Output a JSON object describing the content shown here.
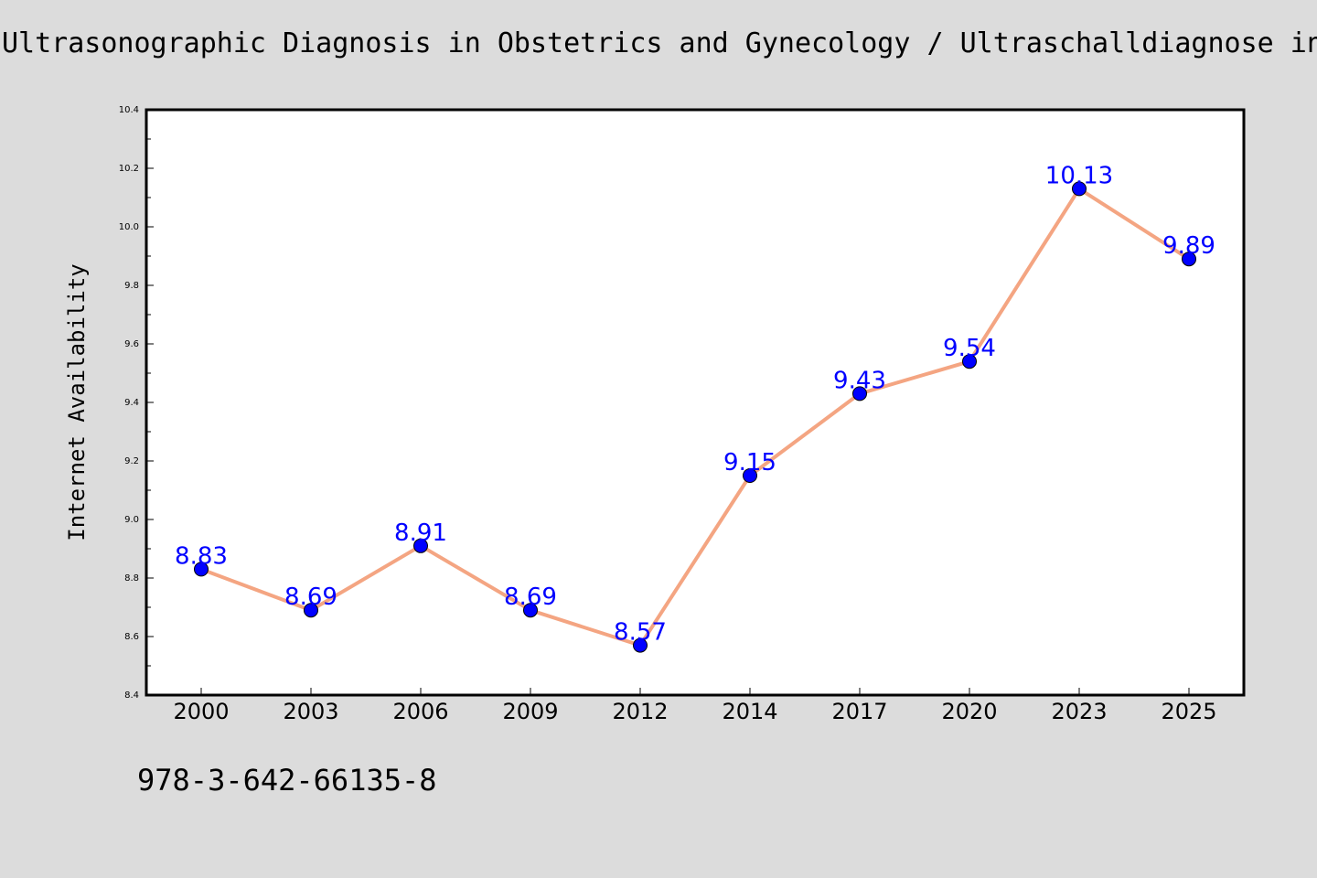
{
  "header": {
    "title": "Ultrasonographic Diagnosis in Obstetrics and Gynecology / Ultraschalldiagnose in Geburtshilfe und Gynäkologie"
  },
  "footer": {
    "isbn": "978-3-642-66135-8"
  },
  "chart_data": {
    "type": "line",
    "title": "",
    "xlabel": "",
    "ylabel": "Internet Availability",
    "categories": [
      "2000",
      "2003",
      "2006",
      "2009",
      "2012",
      "2014",
      "2017",
      "2020",
      "2023",
      "2025"
    ],
    "series": [
      {
        "values": [
          8.83,
          8.69,
          8.91,
          8.69,
          8.57,
          9.15,
          9.43,
          9.54,
          10.13,
          9.89
        ],
        "labels": [
          "8.83",
          "8.69",
          "8.91",
          "8.69",
          "8.57",
          "9.15",
          "9.43",
          "9.54",
          "10.13",
          "9.89"
        ],
        "line_color": "#f4a582",
        "marker_color": "#0000ff"
      }
    ],
    "ylim": [
      8.4,
      10.4
    ],
    "yticks": [
      8.4,
      8.6,
      8.8,
      9.0,
      9.2,
      9.4,
      9.6,
      9.8,
      10.0,
      10.2,
      10.4
    ],
    "ytick_labels": [
      "8.4",
      "8.6",
      "8.8",
      "9.0",
      "9.2",
      "9.4",
      "9.6",
      "9.8",
      "10.0",
      "10.2",
      "10.4"
    ],
    "grid": false,
    "legend": "none",
    "label_color": "#0000ff",
    "background": "#dcdcdc",
    "plot_background": "#ffffff"
  }
}
